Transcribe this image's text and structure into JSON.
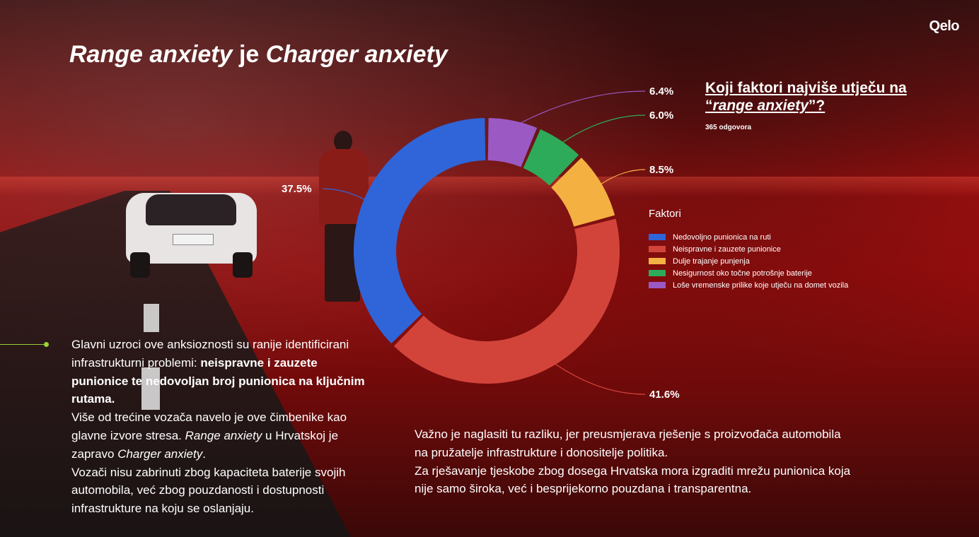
{
  "brand": "Qelo",
  "title_parts": {
    "italic1": "Range anxiety",
    "mid": " je ",
    "italic2": "Charger anxiety"
  },
  "question": {
    "part1": "Koji faktori najviše utječu na “",
    "italic": "range anxiety",
    "part2": "”?"
  },
  "responses": "365 odgovora",
  "legend_title": "Faktori",
  "left_text": {
    "p1": "Glavni uzroci ove anksioznosti su ranije identificirani infrastrukturni problemi: ",
    "p1_bold": "neispravne i zauzete punionice te nedovoljan broj punionica na ključnim rutama.",
    "p2a": "Više od trećine vozača navelo je ove čimbenike kao glavne izvore stresa. ",
    "p2_italic1": "Range anxiety",
    "p2b": " u Hrvatskoj je zapravo ",
    "p2_italic2": "Charger anxiety",
    "p2c": ".",
    "p3": "Vozači nisu zabrinuti zbog kapaciteta baterije svojih automobila, već zbog pouzdanosti i dostupnosti infrastrukture na koju se oslanjaju."
  },
  "right_text": {
    "p1": "Važno je naglasiti tu razliku, jer preusmjerava rješenje s proizvođača automobila na pružatelje infrastrukture i donositelje politika.",
    "p2": "Za rješavanje tjeskobe zbog dosega Hrvatska mora izgraditi mrežu punionica koja nije samo široka, već i besprijekorno pouzdana i transparentna."
  },
  "chart_data": {
    "type": "pie",
    "variant": "donut",
    "legend_placement": "right",
    "slices": [
      {
        "label": "Nedovoljno punionica na ruti",
        "value": 37.5,
        "display": "37.5%",
        "color": "#2f65d9"
      },
      {
        "label": "Neispravne i zauzete punionice",
        "value": 41.6,
        "display": "41.6%",
        "color": "#d2443a"
      },
      {
        "label": "Dulje trajanje punjenja",
        "value": 8.5,
        "display": "8.5%",
        "color": "#f5b042"
      },
      {
        "label": "Nesigurnost oko točne potrošnje baterije",
        "value": 6.0,
        "display": "6.0%",
        "color": "#2eab5a"
      },
      {
        "label": "Loše vremenske prilike koje utječu na domet vozila",
        "value": 6.4,
        "display": "6.4%",
        "color": "#9b59c4"
      }
    ]
  }
}
